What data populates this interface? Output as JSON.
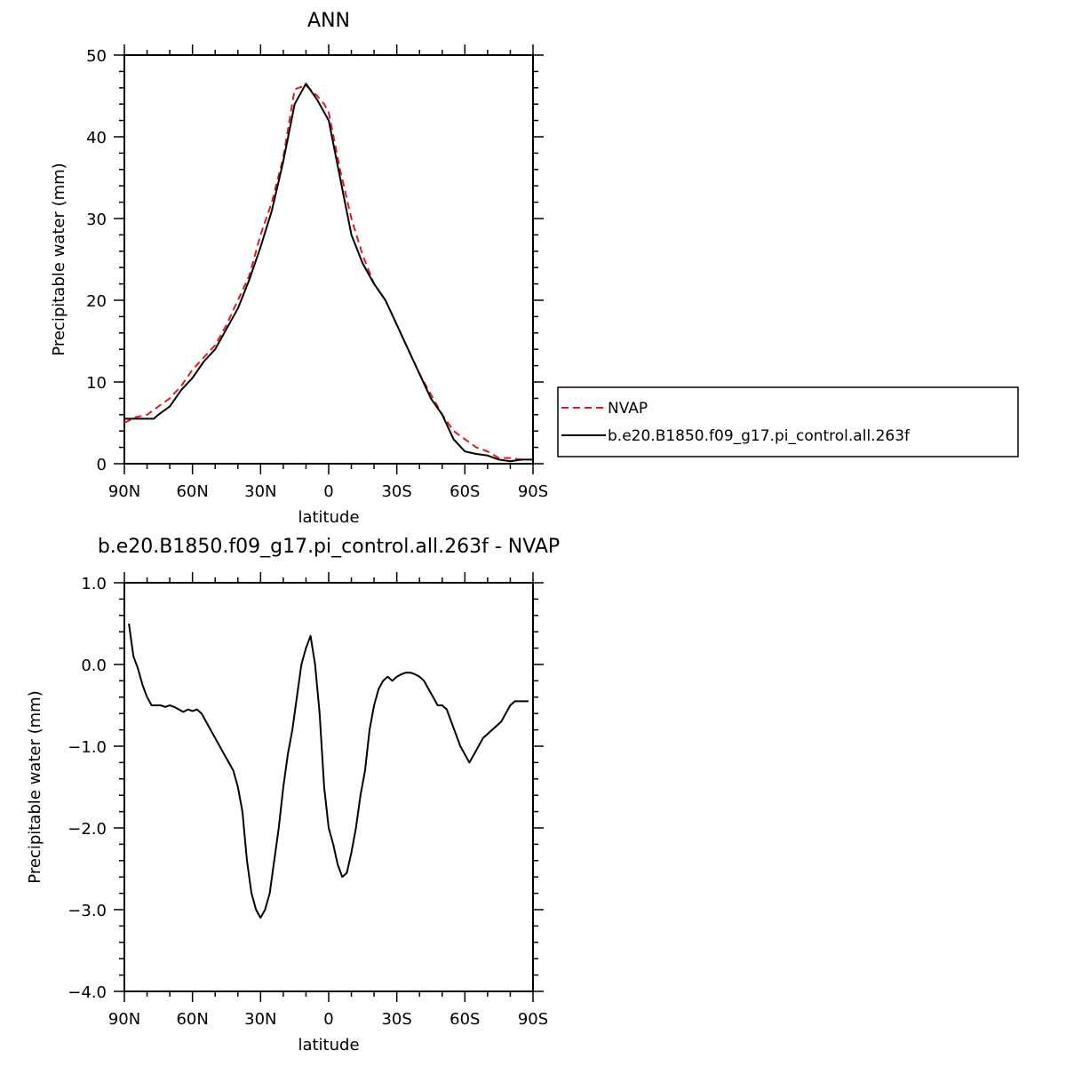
{
  "chart_data": [
    {
      "type": "line",
      "title": "ANN",
      "xlabel": "latitude",
      "ylabel": "Precipitable water (mm)",
      "xlim": [
        90,
        -90
      ],
      "ylim": [
        0,
        50
      ],
      "x_ticks": [
        {
          "value": 90,
          "label": "90N"
        },
        {
          "value": 60,
          "label": "60N"
        },
        {
          "value": 30,
          "label": "30N"
        },
        {
          "value": 0,
          "label": "0"
        },
        {
          "value": -30,
          "label": "30S"
        },
        {
          "value": -60,
          "label": "60S"
        },
        {
          "value": -90,
          "label": "90S"
        }
      ],
      "y_ticks": [
        {
          "value": 0,
          "label": "0"
        },
        {
          "value": 10,
          "label": "10"
        },
        {
          "value": 20,
          "label": "20"
        },
        {
          "value": 30,
          "label": "30"
        },
        {
          "value": 40,
          "label": "40"
        },
        {
          "value": 50,
          "label": "50"
        }
      ],
      "legend_placement": "right",
      "series": [
        {
          "name": "NVAP",
          "color": "#e31a1c",
          "dash": "dashed",
          "x": [
            90,
            85,
            80,
            75,
            70,
            65,
            60,
            55,
            50,
            45,
            40,
            35,
            30,
            25,
            20,
            15,
            10,
            5,
            2,
            0,
            -5,
            -10,
            -15,
            -20,
            -25,
            -30,
            -35,
            -40,
            -45,
            -50,
            -55,
            -60,
            -65,
            -70,
            -75,
            -80,
            -85,
            -90
          ],
          "y": [
            5.0,
            5.7,
            6.0,
            7.0,
            8.0,
            9.5,
            11.5,
            13.0,
            14.5,
            17.0,
            20.0,
            23.0,
            28.0,
            32.0,
            37.5,
            45.8,
            46.3,
            45.0,
            44.0,
            43.0,
            36.0,
            30.0,
            25.5,
            22.0,
            20.0,
            17.0,
            14.0,
            11.0,
            8.5,
            6.0,
            4.0,
            3.0,
            2.0,
            1.5,
            0.7,
            0.7,
            0.5,
            0.5
          ]
        },
        {
          "name": "b.e20.B1850.f09_g17.pi_control.all.263f",
          "color": "#000000",
          "dash": "solid",
          "x": [
            90,
            85,
            80,
            77,
            75,
            70,
            65,
            60,
            55,
            50,
            45,
            40,
            35,
            30,
            25,
            20,
            15,
            10,
            5,
            2,
            0,
            -5,
            -10,
            -15,
            -20,
            -25,
            -30,
            -35,
            -40,
            -45,
            -50,
            -55,
            -60,
            -65,
            -70,
            -75,
            -80,
            -85,
            -90
          ],
          "y": [
            5.5,
            5.5,
            5.5,
            5.5,
            6.0,
            7.0,
            9.0,
            10.5,
            12.5,
            14.0,
            16.5,
            19.0,
            22.5,
            26.5,
            31.0,
            37.0,
            44.0,
            46.5,
            44.5,
            43.0,
            42.0,
            35.0,
            28.0,
            24.5,
            22.0,
            20.0,
            17.0,
            14.0,
            11.0,
            8.0,
            6.0,
            3.0,
            1.5,
            1.2,
            1.0,
            0.5,
            0.3,
            0.5,
            0.5
          ]
        }
      ]
    },
    {
      "type": "line",
      "title": "b.e20.B1850.f09_g17.pi_control.all.263f - NVAP",
      "xlabel": "latitude",
      "ylabel": "Precipitable water (mm)",
      "xlim": [
        90,
        -90
      ],
      "ylim": [
        -4.0,
        1.0
      ],
      "x_ticks": [
        {
          "value": 90,
          "label": "90N"
        },
        {
          "value": 60,
          "label": "60N"
        },
        {
          "value": 30,
          "label": "30N"
        },
        {
          "value": 0,
          "label": "0"
        },
        {
          "value": -30,
          "label": "30S"
        },
        {
          "value": -60,
          "label": "60S"
        },
        {
          "value": -90,
          "label": "90S"
        }
      ],
      "y_ticks": [
        {
          "value": 1.0,
          "label": "1.0"
        },
        {
          "value": 0.0,
          "label": "0.0"
        },
        {
          "value": -1.0,
          "label": "−1.0"
        },
        {
          "value": -2.0,
          "label": "−2.0"
        },
        {
          "value": -3.0,
          "label": "−3.0"
        },
        {
          "value": -4.0,
          "label": "−4.0"
        }
      ],
      "series": [
        {
          "color": "#000000",
          "dash": "solid",
          "x": [
            88,
            86,
            84,
            82,
            80,
            78,
            76,
            74,
            72,
            70,
            68,
            66,
            64,
            62,
            60,
            58,
            56,
            54,
            52,
            50,
            48,
            46,
            44,
            42,
            40,
            38,
            36,
            34,
            32,
            30,
            28,
            26,
            24,
            22,
            20,
            18,
            16,
            14,
            12,
            10,
            8,
            6,
            4,
            2,
            0,
            -2,
            -4,
            -6,
            -8,
            -10,
            -12,
            -14,
            -16,
            -18,
            -20,
            -22,
            -24,
            -26,
            -28,
            -30,
            -32,
            -34,
            -36,
            -38,
            -40,
            -42,
            -44,
            -46,
            -48,
            -50,
            -52,
            -54,
            -56,
            -58,
            -60,
            -62,
            -64,
            -66,
            -68,
            -70,
            -72,
            -74,
            -76,
            -78,
            -80,
            -82,
            -84,
            -86,
            -88
          ],
          "y": [
            0.5,
            0.1,
            -0.05,
            -0.25,
            -0.4,
            -0.5,
            -0.5,
            -0.5,
            -0.52,
            -0.5,
            -0.52,
            -0.55,
            -0.58,
            -0.55,
            -0.57,
            -0.55,
            -0.6,
            -0.7,
            -0.8,
            -0.9,
            -1.0,
            -1.1,
            -1.2,
            -1.3,
            -1.5,
            -1.8,
            -2.4,
            -2.8,
            -3.0,
            -3.1,
            -3.0,
            -2.8,
            -2.4,
            -2.0,
            -1.5,
            -1.1,
            -0.8,
            -0.4,
            0.0,
            0.2,
            0.35,
            0.0,
            -0.6,
            -1.5,
            -2.0,
            -2.2,
            -2.45,
            -2.6,
            -2.55,
            -2.3,
            -2.0,
            -1.6,
            -1.3,
            -0.8,
            -0.5,
            -0.3,
            -0.2,
            -0.15,
            -0.2,
            -0.15,
            -0.12,
            -0.1,
            -0.1,
            -0.12,
            -0.15,
            -0.2,
            -0.3,
            -0.4,
            -0.5,
            -0.5,
            -0.55,
            -0.7,
            -0.85,
            -1.0,
            -1.1,
            -1.2,
            -1.1,
            -1.0,
            -0.9,
            -0.85,
            -0.8,
            -0.75,
            -0.7,
            -0.6,
            -0.5,
            -0.45,
            -0.45,
            -0.45,
            -0.45
          ]
        }
      ]
    }
  ]
}
